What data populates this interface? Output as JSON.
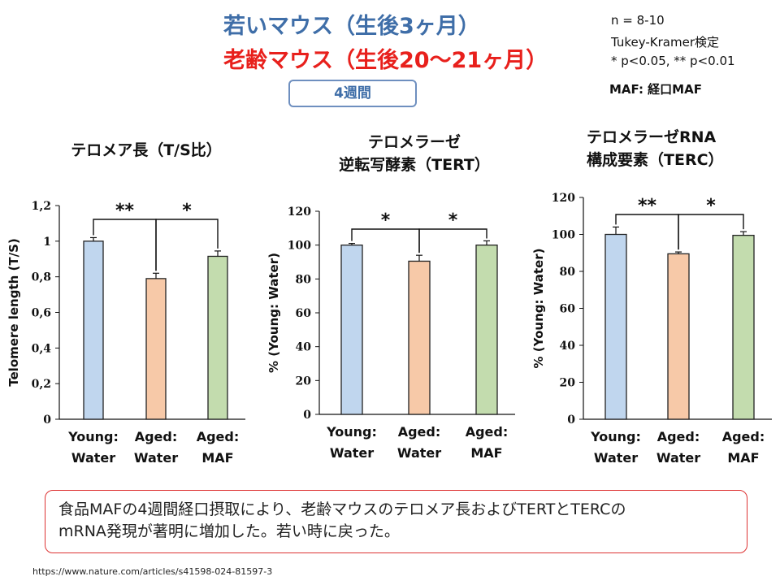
{
  "header": {
    "title_young": "若いマウス（生後3ヶ月）",
    "title_aged": "老齢マウス（生後20～21ヶ月）",
    "duration": "4週間",
    "notes": [
      "n = 8-10",
      "Tukey-Kramer検定",
      "* p<0.05, ** p<0.01"
    ],
    "maf_note": "MAF: 経口MAF"
  },
  "colors": {
    "young": "#c0d6ee",
    "aged_water": "#f7c9a8",
    "aged_maf": "#c3dcae",
    "young_title": "#3f6ea8",
    "aged_title": "#e8201c"
  },
  "chart_titles": [
    [
      "テロメア長（T/S比）"
    ],
    [
      "テロメラーゼ",
      "逆転写酵素（TERT）"
    ],
    [
      "テロメラーゼRNA",
      "構成要素（TERC）"
    ]
  ],
  "chart_data": [
    {
      "type": "bar",
      "ylabel": "Telomere length (T/S)",
      "ylim": [
        0,
        1.2
      ],
      "yticks": [
        "0",
        "0,2",
        "0,4",
        "0,6",
        "0,8",
        "1",
        "1,2"
      ],
      "categories": [
        [
          "Young:",
          "Water"
        ],
        [
          "Aged:",
          "Water"
        ],
        [
          "Aged:",
          "MAF"
        ]
      ],
      "values": [
        1.0,
        0.79,
        0.915
      ],
      "errors": [
        0.02,
        0.03,
        0.03
      ],
      "significance": [
        {
          "from": 0,
          "to": 1,
          "label": "**"
        },
        {
          "from": 1,
          "to": 2,
          "label": "*"
        }
      ]
    },
    {
      "type": "bar",
      "ylabel": "% (Young: Water)",
      "ylim": [
        0,
        120
      ],
      "yticks": [
        "0",
        "20",
        "40",
        "60",
        "80",
        "100",
        "120"
      ],
      "categories": [
        [
          "Young:",
          "Water"
        ],
        [
          "Aged:",
          "Water"
        ],
        [
          "Aged:",
          "MAF"
        ]
      ],
      "values": [
        100,
        90.5,
        100
      ],
      "errors": [
        1,
        3.5,
        2.5
      ],
      "significance": [
        {
          "from": 0,
          "to": 1,
          "label": "*"
        },
        {
          "from": 1,
          "to": 2,
          "label": "*"
        }
      ]
    },
    {
      "type": "bar",
      "ylabel": "% (Young: Water)",
      "ylim": [
        0,
        120
      ],
      "yticks": [
        "0",
        "20",
        "40",
        "60",
        "80",
        "100",
        "120"
      ],
      "categories": [
        [
          "Young:",
          "Water"
        ],
        [
          "Aged:",
          "Water"
        ],
        [
          "Aged:",
          "MAF"
        ]
      ],
      "values": [
        100,
        89.5,
        99.5
      ],
      "errors": [
        4,
        1,
        2
      ],
      "significance": [
        {
          "from": 0,
          "to": 1,
          "label": "**"
        },
        {
          "from": 1,
          "to": 2,
          "label": "*"
        }
      ]
    }
  ],
  "summary": [
    "食品MAFの4週間経口摂取により、老齢マウスのテロメア長およびTERTとTERCの",
    "mRNA発現が著明に増加した。若い時に戻った。"
  ],
  "source_url": "https://www.nature.com/articles/s41598-024-81597-3"
}
